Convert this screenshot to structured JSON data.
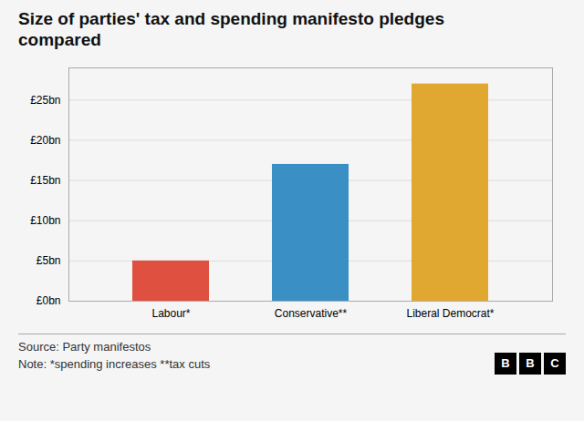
{
  "chart_data": {
    "type": "bar",
    "title": "Size of parties' tax and spending manifesto pledges\ncompared",
    "categories": [
      "Labour*",
      "Conservative**",
      "Liberal Democrat*"
    ],
    "values": [
      5,
      17,
      27
    ],
    "colors": [
      "#e05040",
      "#3a8fc4",
      "#e0a830"
    ],
    "ylim": [
      0,
      29
    ],
    "yticks": [
      {
        "value": 0,
        "label": "£0bn"
      },
      {
        "value": 5,
        "label": "£5bn"
      },
      {
        "value": 10,
        "label": "£10bn"
      },
      {
        "value": 15,
        "label": "£15bn"
      },
      {
        "value": 20,
        "label": "£20bn"
      },
      {
        "value": 25,
        "label": "£25bn"
      }
    ],
    "grid": true,
    "source": "Source: Party manifestos",
    "note": "Note: *spending increases **tax cuts",
    "logo": "BBC"
  }
}
